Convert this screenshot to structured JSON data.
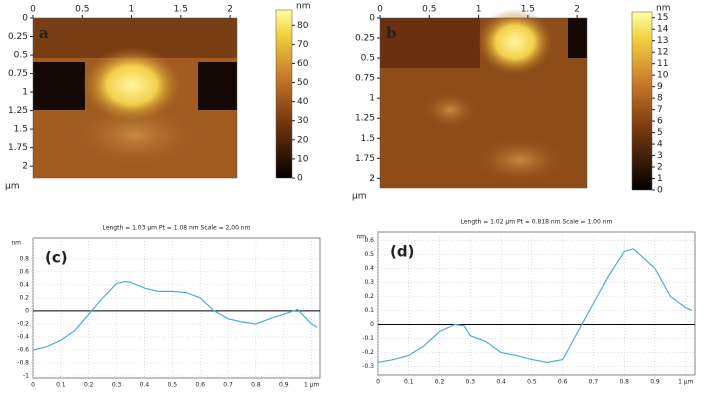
{
  "chart_data": [
    {
      "type": "image",
      "panel_label": "a",
      "x_unit": "µm",
      "xlim": [
        0,
        2.07
      ],
      "ylim": [
        0,
        2.16
      ],
      "xticks": [
        0,
        0.5,
        1,
        1.5,
        2
      ],
      "yticks": [
        0,
        0.25,
        0.5,
        0.75,
        1,
        1.25,
        1.5,
        1.75,
        2
      ],
      "colorbar": {
        "label": "nm",
        "lim": [
          0,
          88
        ],
        "ticks": [
          0,
          10,
          20,
          30,
          40,
          50,
          60,
          70,
          80
        ]
      }
    },
    {
      "type": "image",
      "panel_label": "b",
      "x_unit": "µm",
      "xlim": [
        0,
        2.1
      ],
      "ylim": [
        0,
        2.12
      ],
      "xticks": [
        0,
        0.5,
        1,
        1.5,
        2
      ],
      "yticks": [
        0,
        0.25,
        0.5,
        0.75,
        1,
        1.25,
        1.5,
        1.75,
        2
      ],
      "colorbar": {
        "label": "nm",
        "lim": [
          0,
          15.5
        ],
        "ticks": [
          0,
          1,
          2,
          3,
          4,
          5,
          6,
          7,
          8,
          9,
          10,
          11,
          12,
          13,
          14,
          15
        ]
      }
    },
    {
      "type": "line",
      "title": "Length = 1.03 µm  Pt = 1.08 nm  Scale = 2.00 nm",
      "panel_label": "(c)",
      "y_unit": "nm",
      "xlim": [
        0,
        1.03
      ],
      "ylim": [
        -1.03,
        1.12
      ],
      "xticks": [
        0,
        0.1,
        0.2,
        0.3,
        0.4,
        0.5,
        0.6,
        0.7,
        0.8,
        0.9,
        {
          "value": 1,
          "label": "1 µm"
        }
      ],
      "yticks": [
        0.8,
        0.6,
        0.4,
        0.2,
        0,
        -0.2,
        -0.4,
        -0.6,
        -0.8,
        -1
      ],
      "color": "#4bb0d0",
      "x": [
        0,
        0.05,
        0.1,
        0.15,
        0.2,
        0.25,
        0.3,
        0.33,
        0.35,
        0.4,
        0.45,
        0.5,
        0.55,
        0.6,
        0.65,
        0.7,
        0.75,
        0.8,
        0.85,
        0.9,
        0.95,
        1.0,
        1.02
      ],
      "values": [
        -0.6,
        -0.55,
        -0.45,
        -0.3,
        -0.05,
        0.2,
        0.42,
        0.45,
        0.44,
        0.35,
        0.3,
        0.3,
        0.28,
        0.2,
        0.0,
        -0.12,
        -0.17,
        -0.2,
        -0.12,
        -0.05,
        0.02,
        -0.2,
        -0.25
      ]
    },
    {
      "type": "line",
      "title": "Length = 1.02 µm  Pt = 0.818 nm  Scale = 1.00 nm",
      "panel_label": "(d)",
      "y_unit": "nm",
      "xlim": [
        0,
        1.03
      ],
      "ylim": [
        -0.36,
        0.66
      ],
      "xticks": [
        0,
        0.1,
        0.2,
        0.3,
        0.4,
        0.5,
        0.6,
        0.7,
        0.8,
        0.9,
        {
          "value": 1,
          "label": "1 µm"
        }
      ],
      "yticks": [
        0.6,
        0.5,
        0.4,
        0.3,
        0.2,
        0.1,
        0,
        -0.1,
        -0.2,
        -0.3
      ],
      "color": "#4bb0d0",
      "x": [
        0,
        0.05,
        0.1,
        0.15,
        0.2,
        0.25,
        0.28,
        0.3,
        0.35,
        0.4,
        0.45,
        0.5,
        0.55,
        0.6,
        0.65,
        0.7,
        0.75,
        0.8,
        0.83,
        0.85,
        0.9,
        0.95,
        1.0,
        1.02
      ],
      "values": [
        -0.27,
        -0.25,
        -0.22,
        -0.15,
        -0.05,
        0.0,
        -0.01,
        -0.08,
        -0.12,
        -0.2,
        -0.22,
        -0.25,
        -0.27,
        -0.25,
        -0.05,
        0.15,
        0.35,
        0.52,
        0.54,
        0.5,
        0.4,
        0.2,
        0.12,
        0.1
      ]
    }
  ]
}
